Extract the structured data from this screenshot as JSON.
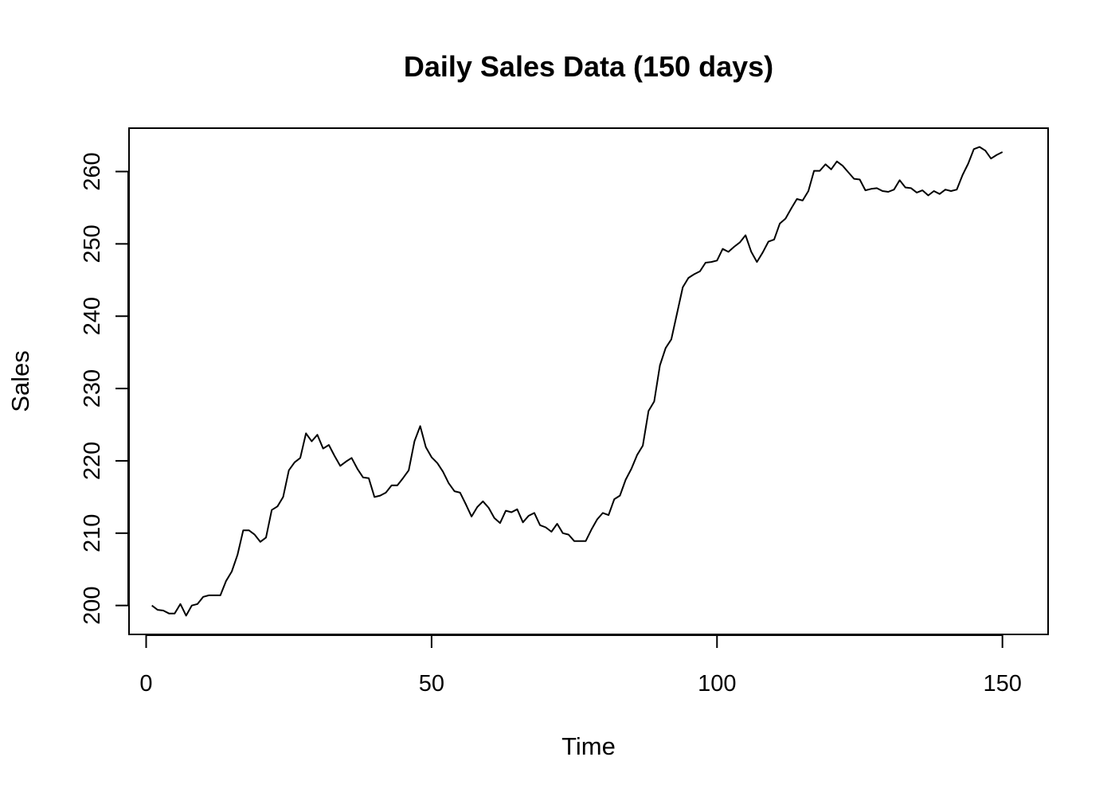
{
  "chart_data": {
    "type": "line",
    "title": "Daily Sales Data (150 days)",
    "xlabel": "Time",
    "ylabel": "Sales",
    "xlim": [
      -3,
      158
    ],
    "ylim": [
      196,
      266
    ],
    "xticks": [
      0,
      50,
      100,
      150
    ],
    "xtick_labels": [
      "0",
      "50",
      "100",
      "150"
    ],
    "yticks": [
      200,
      210,
      220,
      230,
      240,
      250,
      260
    ],
    "ytick_labels": [
      "200",
      "210",
      "220",
      "230",
      "240",
      "250",
      "260"
    ],
    "grid": false,
    "legend": "none",
    "series": [
      {
        "x": [
          1,
          2,
          3,
          4,
          5,
          6,
          7,
          8,
          9,
          10,
          11,
          12,
          13,
          14,
          15,
          16,
          17,
          18,
          19,
          20,
          21,
          22,
          23,
          24,
          25,
          26,
          27,
          28,
          29,
          30,
          31,
          32,
          33,
          34,
          35,
          36,
          37,
          38,
          39,
          40,
          41,
          42,
          43,
          44,
          45,
          46,
          47,
          48,
          49,
          50,
          51,
          52,
          53,
          54,
          55,
          56,
          57,
          58,
          59,
          60,
          61,
          62,
          63,
          64,
          65,
          66,
          67,
          68,
          69,
          70,
          71,
          72,
          73,
          74,
          75,
          76,
          77,
          78,
          79,
          80,
          81,
          82,
          83,
          84,
          85,
          86,
          87,
          88,
          89,
          90,
          91,
          92,
          93,
          94,
          95,
          96,
          97,
          98,
          99,
          100,
          101,
          102,
          103,
          104,
          105,
          106,
          107,
          108,
          109,
          110,
          111,
          112,
          113,
          114,
          115,
          116,
          117,
          118,
          119,
          120,
          121,
          122,
          123,
          124,
          125,
          126,
          127,
          128,
          129,
          130,
          131,
          132,
          133,
          134,
          135,
          136,
          137,
          138,
          139,
          140,
          141,
          142,
          143,
          144,
          145,
          146,
          147,
          148,
          149,
          150
        ],
        "values": [
          200.0,
          199.4,
          199.3,
          198.9,
          198.9,
          200.2,
          198.6,
          200.0,
          200.2,
          201.2,
          201.4,
          201.4,
          201.4,
          203.4,
          204.7,
          207.0,
          210.4,
          210.4,
          209.8,
          208.8,
          209.4,
          213.2,
          213.7,
          215.0,
          218.7,
          219.8,
          220.4,
          223.8,
          222.7,
          223.6,
          221.7,
          222.2,
          220.7,
          219.3,
          219.9,
          220.4,
          218.9,
          217.7,
          217.6,
          215.0,
          215.2,
          215.6,
          216.6,
          216.6,
          217.6,
          218.7,
          222.7,
          224.8,
          221.9,
          220.5,
          219.7,
          218.5,
          216.9,
          215.8,
          215.6,
          214.0,
          212.3,
          213.6,
          214.4,
          213.5,
          212.1,
          211.4,
          213.1,
          212.9,
          213.3,
          211.5,
          212.4,
          212.8,
          211.1,
          210.8,
          210.2,
          211.3,
          210.0,
          209.8,
          208.9,
          208.9,
          208.9,
          210.5,
          211.9,
          212.8,
          212.5,
          214.7,
          215.2,
          217.4,
          218.9,
          220.8,
          222.1,
          226.9,
          228.2,
          233.2,
          235.6,
          236.8,
          240.4,
          244.0,
          245.3,
          245.8,
          246.2,
          247.4,
          247.5,
          247.7,
          249.3,
          248.9,
          249.6,
          250.2,
          251.2,
          248.9,
          247.5,
          248.8,
          250.3,
          250.6,
          252.8,
          253.5,
          254.9,
          256.2,
          256.0,
          257.3,
          260.1,
          260.1,
          261.0,
          260.3,
          261.4,
          260.8,
          259.9,
          259.0,
          258.9,
          257.4,
          257.6,
          257.7,
          257.3,
          257.2,
          257.5,
          258.8,
          257.8,
          257.7,
          257.1,
          257.4,
          256.7,
          257.3,
          256.9,
          257.5,
          257.3,
          257.5,
          259.5,
          261.1,
          263.1,
          263.4,
          262.9,
          261.8,
          262.3,
          262.7
        ]
      }
    ]
  }
}
